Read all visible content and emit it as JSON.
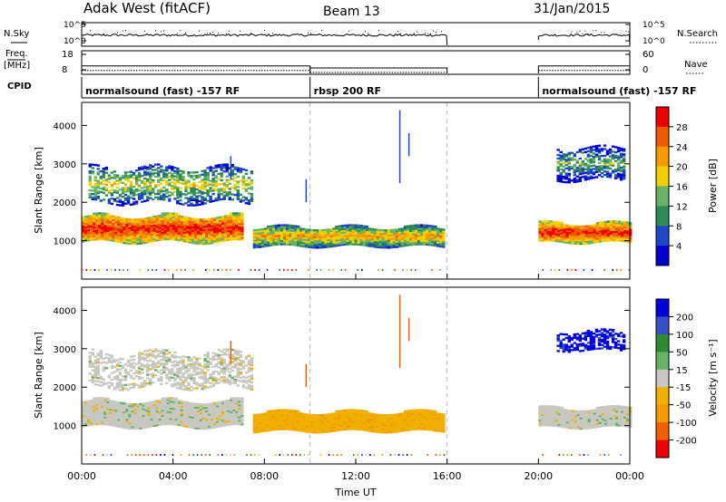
{
  "header": {
    "title": "Adak West (fitACF)",
    "beam": "Beam 13",
    "date": "31/Jan/2015"
  },
  "strip_labels": {
    "nsky": "N.Sky",
    "nsearch": "N.Search",
    "freq_top": "Freq.",
    "freq_unit": "[MHz]",
    "nave": "Nave",
    "cpid": "CPID"
  },
  "chart_data": [
    {
      "type": "line",
      "name": "nsky-nsearch-strip",
      "left_ticks": [
        "10^5",
        "10^0"
      ],
      "right_ticks": [
        "10^5",
        "10^0"
      ],
      "segments": [
        {
          "x": [
            "00:00",
            "16:00"
          ]
        },
        {
          "x": [
            "20:00",
            "24:00"
          ]
        }
      ]
    },
    {
      "type": "line",
      "name": "frequency-nave-strip",
      "left_ticks": [
        "18",
        "8"
      ],
      "right_ticks": [
        "60",
        "0"
      ],
      "frequency_mhz": [
        {
          "x": [
            "00:00",
            "10:00"
          ],
          "y": 11.5
        },
        {
          "x": [
            "10:00",
            "16:00"
          ],
          "y": 10.2
        },
        {
          "x": [
            "20:00",
            "24:00"
          ],
          "y": 11.5
        }
      ]
    },
    {
      "type": "table",
      "name": "cpid-strip",
      "segments": [
        {
          "label": "normalsound (fast) -157 RF",
          "x": [
            "00:00",
            "10:00"
          ]
        },
        {
          "label": "rbsp 200 RF",
          "x": [
            "10:00",
            "16:00"
          ]
        },
        {
          "label": "normalsound (fast) -157 RF",
          "x": [
            "20:00",
            "24:00"
          ]
        }
      ]
    },
    {
      "type": "heatmap",
      "name": "power",
      "ylabel": "Slant Range [km]",
      "yticks": [
        1000,
        2000,
        3000,
        4000
      ],
      "ylim": [
        0,
        4600
      ],
      "colorbar_label": "Power [dB]",
      "colorbar_ticks": [
        "28",
        "24",
        "20",
        "16",
        "12",
        "8",
        "4"
      ],
      "colors": [
        "#0000cc",
        "#1e46c8",
        "#2e8b57",
        "#66b266",
        "#f0d000",
        "#f59a00",
        "#ef5a00",
        "#ee0000"
      ],
      "features": [
        {
          "t": [
            0.0,
            7.0
          ],
          "r": [
            900,
            1700
          ],
          "level": "28"
        },
        {
          "t": [
            0.3,
            7.5
          ],
          "r": [
            1900,
            3000
          ],
          "level": "16"
        },
        {
          "t": [
            7.5,
            15.8
          ],
          "r": [
            800,
            1400
          ],
          "level": "20"
        },
        {
          "t": [
            20.0,
            24.0
          ],
          "r": [
            900,
            1500
          ],
          "level": "28"
        },
        {
          "t": [
            20.8,
            23.8
          ],
          "r": [
            2500,
            3500
          ],
          "level": "12"
        }
      ]
    },
    {
      "type": "heatmap",
      "name": "velocity",
      "ylabel": "Slant Range [km]",
      "yticks": [
        1000,
        2000,
        3000,
        4000
      ],
      "ylim": [
        0,
        4600
      ],
      "colorbar_label": "Velocity [m s⁻¹]",
      "colorbar_ticks": [
        "200",
        "100",
        "50",
        "15",
        "-15",
        "-50",
        "-100",
        "-200"
      ],
      "colors": [
        "#ee0000",
        "#f06000",
        "#f59a00",
        "#f0b000",
        "#c8c8c0",
        "#66b266",
        "#2f8a2f",
        "#3450c8",
        "#0000dd"
      ],
      "features": [
        {
          "t": [
            0.0,
            7.0
          ],
          "r": [
            900,
            1700
          ],
          "level": "-15..15"
        },
        {
          "t": [
            0.3,
            7.5
          ],
          "r": [
            1900,
            3000
          ],
          "level": "-15..15"
        },
        {
          "t": [
            7.5,
            15.8
          ],
          "r": [
            800,
            1400
          ],
          "level": "-50"
        },
        {
          "t": [
            20.0,
            24.0
          ],
          "r": [
            900,
            1500
          ],
          "level": "-15..15"
        },
        {
          "t": [
            20.8,
            23.8
          ],
          "r": [
            2900,
            3500
          ],
          "level": "200"
        }
      ]
    }
  ],
  "time_axis": {
    "ticks": [
      "00:00",
      "04:00",
      "08:00",
      "12:00",
      "16:00",
      "20:00",
      "00:00"
    ],
    "xlabel": "Time UT"
  }
}
